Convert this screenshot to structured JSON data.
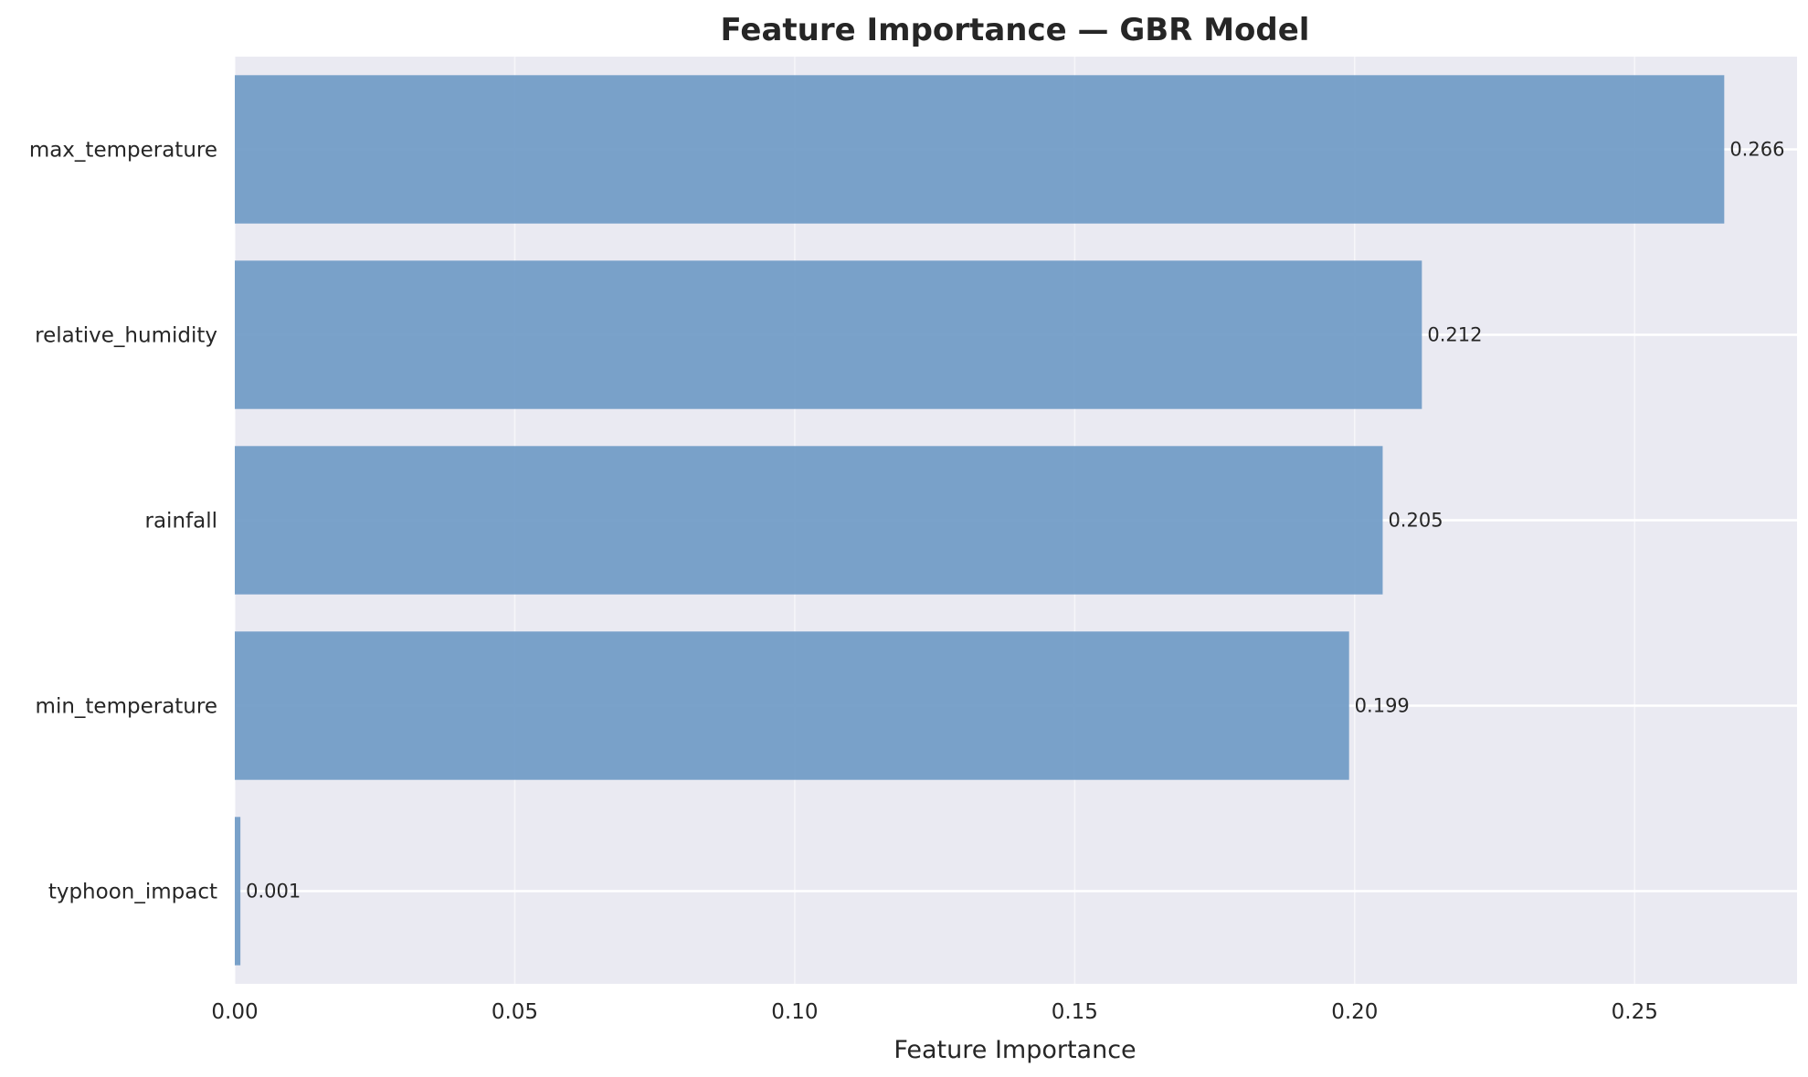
{
  "chart_data": {
    "type": "bar",
    "orientation": "horizontal",
    "title": "Feature Importance — GBR Model",
    "xlabel": "Feature Importance",
    "ylabel": "",
    "categories": [
      "max_temperature",
      "relative_humidity",
      "rainfall",
      "min_temperature",
      "typhoon_impact"
    ],
    "values": [
      0.266,
      0.212,
      0.205,
      0.199,
      0.001
    ],
    "data_labels": [
      "0.266",
      "0.212",
      "0.205",
      "0.199",
      "0.001"
    ],
    "xlim": [
      0,
      0.279
    ],
    "xticks": [
      0.0,
      0.05,
      0.1,
      0.15,
      0.2,
      0.25
    ],
    "xtick_labels": [
      "0.00",
      "0.05",
      "0.10",
      "0.15",
      "0.20",
      "0.25"
    ],
    "grid": true,
    "legend": false,
    "bar_color": "#6f9ac5",
    "background_color": "#eaeaf2",
    "grid_color": "#ffffff"
  }
}
